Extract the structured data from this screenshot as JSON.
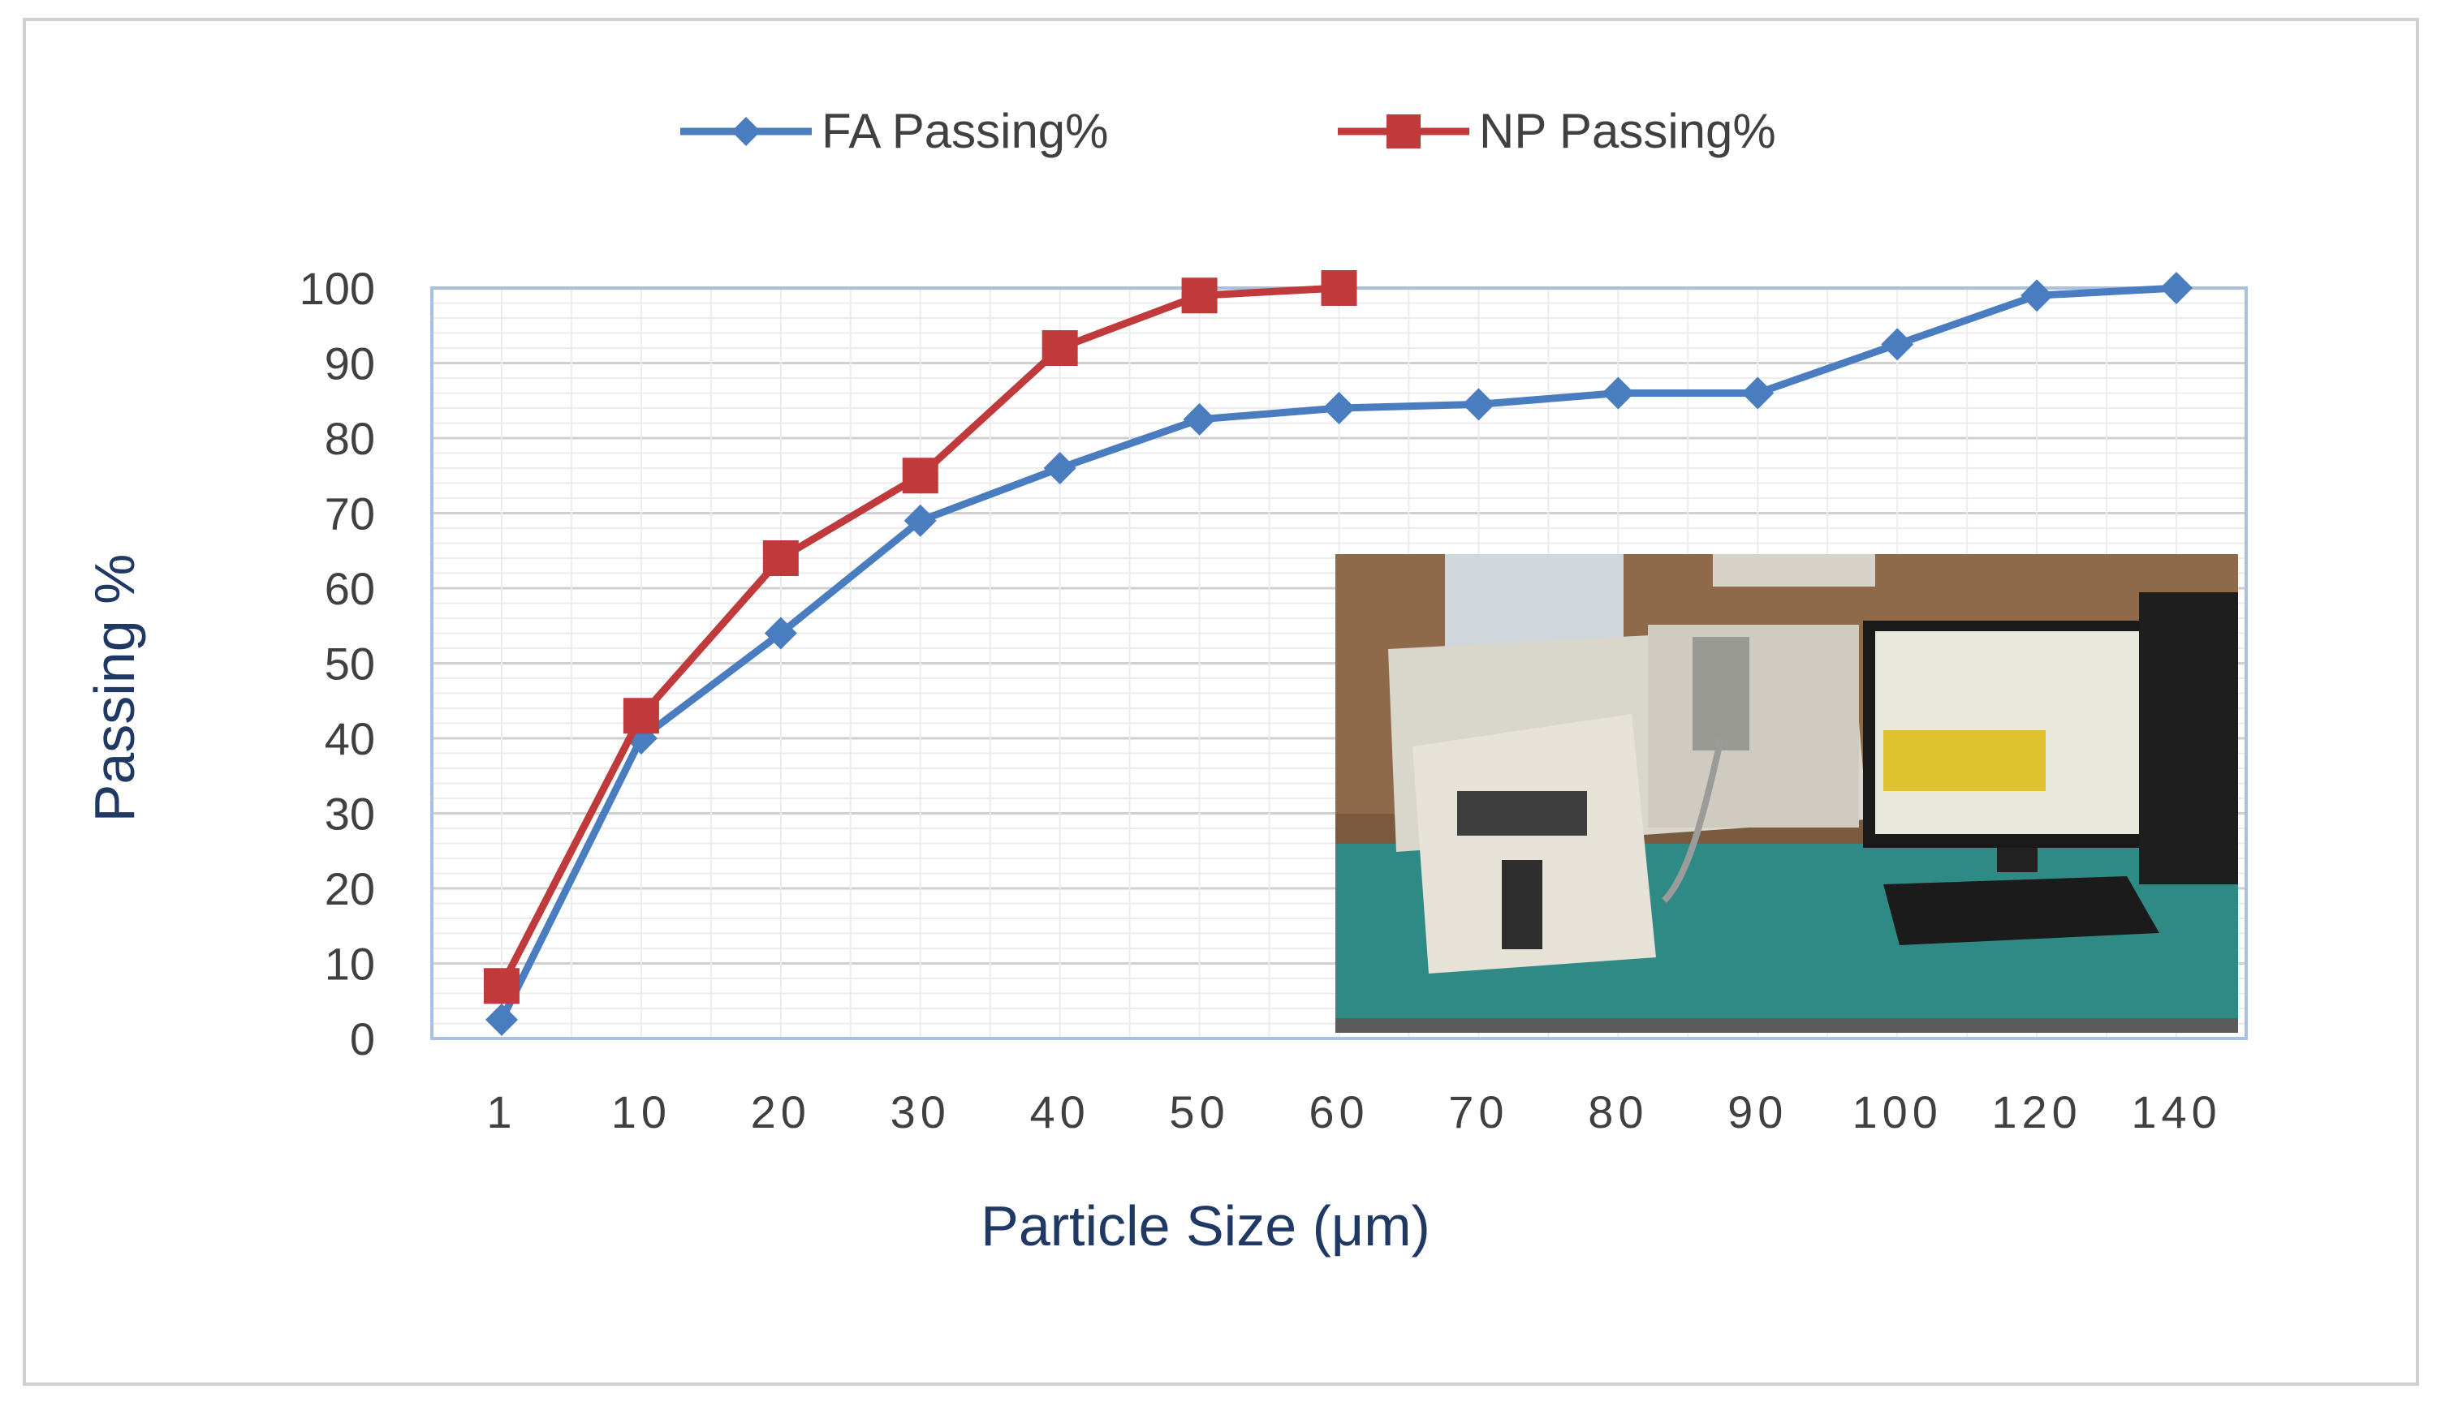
{
  "chart_data": {
    "type": "line",
    "title": "",
    "xlabel": "Particle Size (μm)",
    "ylabel": "Passing %",
    "categories": [
      "1",
      "10",
      "20",
      "30",
      "40",
      "50",
      "60",
      "70",
      "80",
      "90",
      "100",
      "120",
      "140"
    ],
    "ylim": [
      0,
      100
    ],
    "yticks": [
      0,
      10,
      20,
      30,
      40,
      50,
      60,
      70,
      80,
      90,
      100
    ],
    "grid": true,
    "legend_position": "top-center",
    "series": [
      {
        "name": "FA Passing%",
        "color": "#4a7dbf",
        "marker": "diamond",
        "values": [
          2.5,
          40,
          54,
          69,
          76,
          82.5,
          84,
          84.5,
          86,
          86,
          92.5,
          99,
          100
        ]
      },
      {
        "name": "NP Passing%",
        "color": "#c0393b",
        "marker": "square",
        "values": [
          7,
          43,
          64,
          75,
          92,
          99,
          100,
          null,
          null,
          null,
          null,
          null,
          null
        ]
      }
    ]
  },
  "photo_inset": {
    "name": "particle-size-analyzer-photo"
  }
}
